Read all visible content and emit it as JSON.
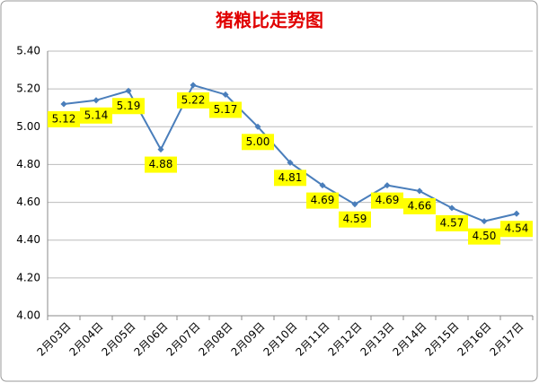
{
  "chart_data": {
    "type": "line",
    "title": "猪粮比走势图",
    "categories": [
      "2月03日",
      "2月04日",
      "2月05日",
      "2月06日",
      "2月07日",
      "2月08日",
      "2月09日",
      "2月10日",
      "2月11日",
      "2月12日",
      "2月13日",
      "2月14日",
      "2月15日",
      "2月16日",
      "2月17日"
    ],
    "series": [
      {
        "name": "猪粮比",
        "color": "#4a7ebb",
        "values": [
          5.12,
          5.14,
          5.19,
          4.88,
          5.22,
          5.17,
          5.0,
          4.81,
          4.69,
          4.59,
          4.69,
          4.66,
          4.57,
          4.5,
          4.54
        ],
        "value_labels": [
          "5.12",
          "5.14",
          "5.19",
          "4.88",
          "5.22",
          "5.17",
          "5.00",
          "4.81",
          "4.69",
          "4.59",
          "4.69",
          "4.66",
          "4.57",
          "4.50",
          "4.54"
        ]
      }
    ],
    "ylim": [
      4.0,
      5.4
    ],
    "yticks": [
      {
        "value": 4.0,
        "label": "4.00"
      },
      {
        "value": 4.2,
        "label": "4.20"
      },
      {
        "value": 4.4,
        "label": "4.40"
      },
      {
        "value": 4.6,
        "label": "4.60"
      },
      {
        "value": 4.8,
        "label": "4.80"
      },
      {
        "value": 5.0,
        "label": "5.00"
      },
      {
        "value": 5.2,
        "label": "5.20"
      },
      {
        "value": 5.4,
        "label": "5.40"
      }
    ],
    "grid": true,
    "label_color": "#ffff00"
  }
}
